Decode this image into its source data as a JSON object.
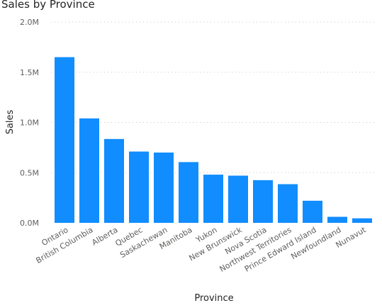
{
  "chart_data": {
    "type": "bar",
    "title": "Sales by Province",
    "xlabel": "Province",
    "ylabel": "Sales",
    "ylim": [
      0,
      2000000
    ],
    "yticks": [
      {
        "value": 0,
        "label": "0.0M"
      },
      {
        "value": 500000,
        "label": "0.5M"
      },
      {
        "value": 1000000,
        "label": "1.0M"
      },
      {
        "value": 1500000,
        "label": "1.5M"
      },
      {
        "value": 2000000,
        "label": "2.0M"
      }
    ],
    "grid": true,
    "bar_color": "#118DFF",
    "categories": [
      "Ontario",
      "British Columbia",
      "Alberta",
      "Quebec",
      "Saskachewan",
      "Manitoba",
      "Yukon",
      "New Brunswick",
      "Nova Scotia",
      "Northwest Territories",
      "Prince Edward Island",
      "Newfoundland",
      "Nunavut"
    ],
    "values": [
      1650000,
      1040000,
      835000,
      710000,
      700000,
      605000,
      480000,
      470000,
      425000,
      385000,
      220000,
      60000,
      45000
    ]
  }
}
